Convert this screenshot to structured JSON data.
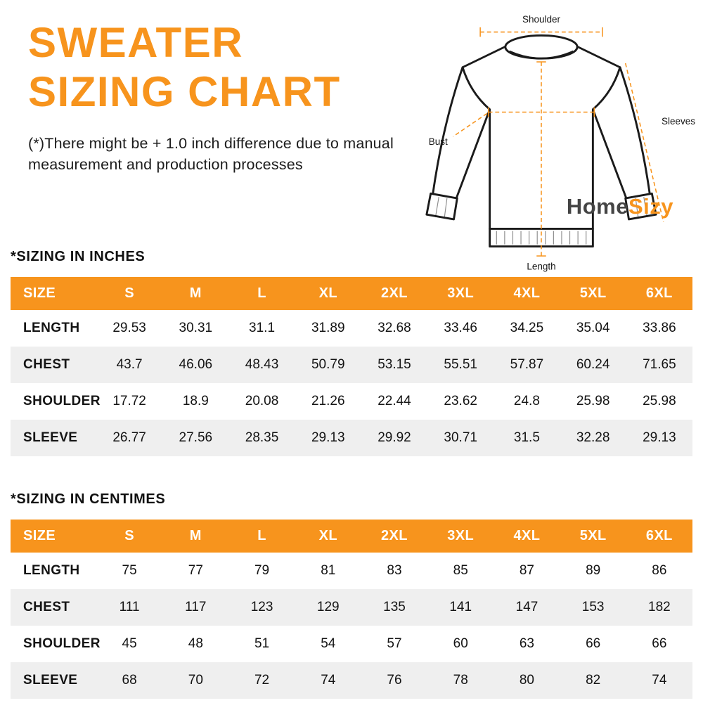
{
  "header": {
    "title_line1": "SWEATER",
    "title_line2": "SIZING CHART",
    "disclaimer": "(*)There might be + 1.0 inch difference due to manual measurement and production processes"
  },
  "diagram": {
    "labels": {
      "shoulder": "Shoulder",
      "sleeves": "Sleeves",
      "bust": "Bust",
      "length": "Length"
    },
    "logo": {
      "part1": "Home",
      "part2": "Sizy"
    }
  },
  "colors": {
    "accent_orange": "#F7941D",
    "row_stripe": "#EFEFEF",
    "header_text": "#FFFFFF",
    "body_text": "#141414"
  },
  "sections": [
    {
      "heading": "*SIZING IN INCHES",
      "table": {
        "header": [
          "SIZE",
          "S",
          "M",
          "L",
          "XL",
          "2XL",
          "3XL",
          "4XL",
          "5XL",
          "6XL"
        ],
        "rows": [
          {
            "label": "LENGTH",
            "values": [
              "29.53",
              "30.31",
              "31.1",
              "31.89",
              "32.68",
              "33.46",
              "34.25",
              "35.04",
              "33.86"
            ]
          },
          {
            "label": "CHEST",
            "values": [
              "43.7",
              "46.06",
              "48.43",
              "50.79",
              "53.15",
              "55.51",
              "57.87",
              "60.24",
              "71.65"
            ]
          },
          {
            "label": "SHOULDER",
            "values": [
              "17.72",
              "18.9",
              "20.08",
              "21.26",
              "22.44",
              "23.62",
              "24.8",
              "25.98",
              "25.98"
            ]
          },
          {
            "label": "SLEEVE",
            "values": [
              "26.77",
              "27.56",
              "28.35",
              "29.13",
              "29.92",
              "30.71",
              "31.5",
              "32.28",
              "29.13"
            ]
          }
        ]
      }
    },
    {
      "heading": "*SIZING IN CENTIMES",
      "table": {
        "header": [
          "SIZE",
          "S",
          "M",
          "L",
          "XL",
          "2XL",
          "3XL",
          "4XL",
          "5XL",
          "6XL"
        ],
        "rows": [
          {
            "label": "LENGTH",
            "values": [
              "75",
              "77",
              "79",
              "81",
              "83",
              "85",
              "87",
              "89",
              "86"
            ]
          },
          {
            "label": "CHEST",
            "values": [
              "111",
              "117",
              "123",
              "129",
              "135",
              "141",
              "147",
              "153",
              "182"
            ]
          },
          {
            "label": "SHOULDER",
            "values": [
              "45",
              "48",
              "51",
              "54",
              "57",
              "60",
              "63",
              "66",
              "66"
            ]
          },
          {
            "label": "SLEEVE",
            "values": [
              "68",
              "70",
              "72",
              "74",
              "76",
              "78",
              "80",
              "82",
              "74"
            ]
          }
        ]
      }
    }
  ]
}
